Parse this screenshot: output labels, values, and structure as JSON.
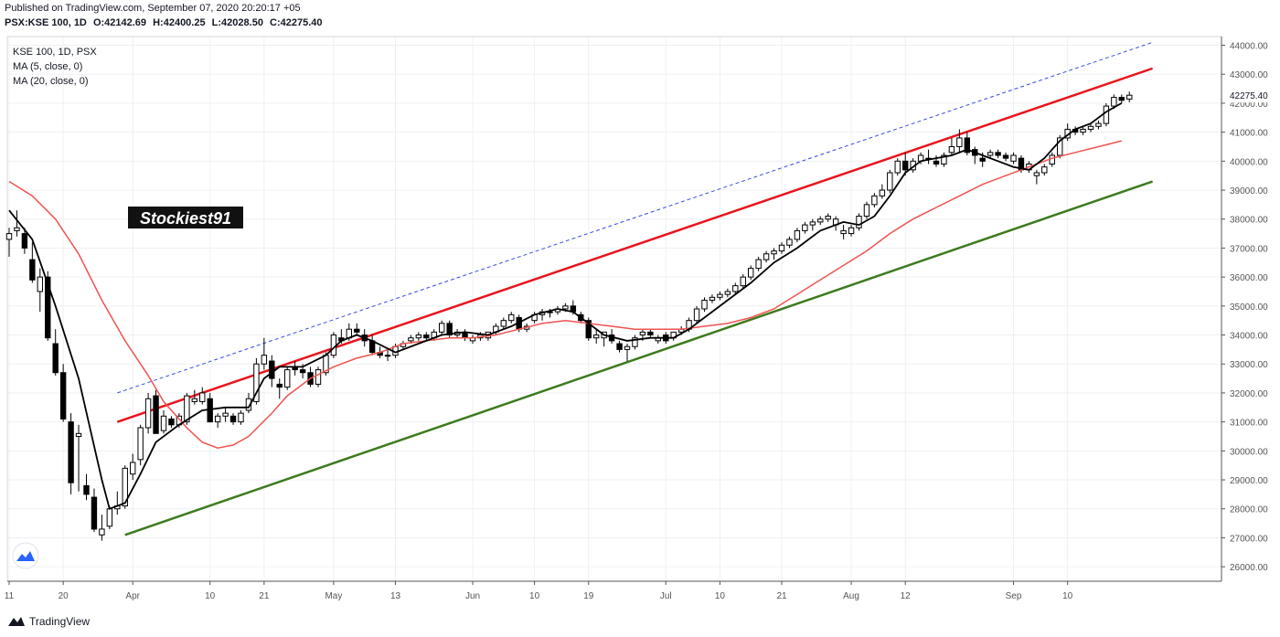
{
  "header": {
    "published": "Published on TradingView.com, September 07, 2020 20:20:17 +05",
    "symbol": "PSX:KSE 100, 1D",
    "ohlc": {
      "open": "O:42142.69",
      "high": "H:42400.25",
      "low": "L:42028.50",
      "close": "C:42275.40"
    }
  },
  "chart_legend": {
    "symbol_line": "KSE 100, 1D, PSX",
    "ma5": "MA (5, close, 0)",
    "ma20": "MA (20, close, 0)"
  },
  "watermark": "Stockiest91",
  "footer": {
    "brand": "TradingView"
  },
  "colors": {
    "ma5": "#000000",
    "ma20": "#ef5350",
    "upper_channel": "#e8141c",
    "lower_channel": "#3d7a1e",
    "dashed_channel": "#3b4be0",
    "grid": "#eef0f3",
    "axis": "#555555"
  },
  "chart_data": {
    "type": "candlestick",
    "y_axis": {
      "min": 25500,
      "max": 44300,
      "ticks": [
        "26000.00",
        "27000.00",
        "28000.00",
        "29000.00",
        "30000.00",
        "31000.00",
        "32000.00",
        "33000.00",
        "34000.00",
        "35000.00",
        "36000.00",
        "37000.00",
        "38000.00",
        "39000.00",
        "40000.00",
        "41000.00",
        "42000.00",
        "43000.00",
        "44000.00"
      ],
      "last_price_label": "42275.40"
    },
    "x_axis": {
      "labels": [
        {
          "i": 0,
          "text": "11"
        },
        {
          "i": 7,
          "text": "20"
        },
        {
          "i": 16,
          "text": "Apr"
        },
        {
          "i": 26,
          "text": "10"
        },
        {
          "i": 33,
          "text": "21"
        },
        {
          "i": 42,
          "text": "May"
        },
        {
          "i": 50,
          "text": "13"
        },
        {
          "i": 60,
          "text": "Jun"
        },
        {
          "i": 68,
          "text": "10"
        },
        {
          "i": 75,
          "text": "19"
        },
        {
          "i": 85,
          "text": "Jul"
        },
        {
          "i": 92,
          "text": "10"
        },
        {
          "i": 100,
          "text": "21"
        },
        {
          "i": 109,
          "text": "Aug"
        },
        {
          "i": 116,
          "text": "12"
        },
        {
          "i": 130,
          "text": "Sep"
        },
        {
          "i": 137,
          "text": "10"
        }
      ]
    },
    "candles": [
      [
        37300,
        37700,
        36700,
        37500
      ],
      [
        37600,
        38300,
        37400,
        37700
      ],
      [
        37500,
        37700,
        36800,
        37000
      ],
      [
        36600,
        37200,
        35800,
        35900
      ],
      [
        35500,
        36300,
        34800,
        36000
      ],
      [
        36000,
        36200,
        33800,
        33900
      ],
      [
        33700,
        34200,
        32600,
        32700
      ],
      [
        32700,
        33000,
        31000,
        31100
      ],
      [
        31000,
        31300,
        28500,
        28900
      ],
      [
        30500,
        30900,
        28600,
        30600
      ],
      [
        28800,
        29200,
        28300,
        28500
      ],
      [
        28400,
        28700,
        27200,
        27300
      ],
      [
        27100,
        27800,
        26900,
        27300
      ],
      [
        27400,
        28100,
        27300,
        28000
      ],
      [
        28000,
        28600,
        27800,
        28100
      ],
      [
        28100,
        29500,
        28000,
        29400
      ],
      [
        29200,
        29900,
        29000,
        29600
      ],
      [
        29700,
        30900,
        29500,
        30800
      ],
      [
        30800,
        32000,
        30600,
        31800
      ],
      [
        31900,
        32100,
        30600,
        30600
      ],
      [
        30700,
        31400,
        30600,
        31200
      ],
      [
        31100,
        31200,
        30800,
        30900
      ],
      [
        30900,
        31300,
        30800,
        31200
      ],
      [
        31000,
        32000,
        30900,
        31900
      ],
      [
        31700,
        32100,
        31600,
        31800
      ],
      [
        31700,
        32200,
        31600,
        32000
      ],
      [
        31800,
        32000,
        31000,
        31000
      ],
      [
        31000,
        31300,
        30800,
        31200
      ],
      [
        31200,
        31500,
        31000,
        31300
      ],
      [
        31200,
        31300,
        30900,
        31000
      ],
      [
        31000,
        31400,
        30900,
        31300
      ],
      [
        31400,
        32000,
        31300,
        31800
      ],
      [
        31700,
        33200,
        31600,
        33000
      ],
      [
        33000,
        33900,
        32800,
        33300
      ],
      [
        33100,
        33300,
        32200,
        32500
      ],
      [
        32300,
        32500,
        31800,
        32200
      ],
      [
        32200,
        32900,
        32100,
        32800
      ],
      [
        32900,
        33100,
        32600,
        32800
      ],
      [
        32800,
        33000,
        32500,
        32700
      ],
      [
        32700,
        32900,
        32200,
        32300
      ],
      [
        32300,
        32900,
        32200,
        32800
      ],
      [
        32700,
        33400,
        32600,
        33300
      ],
      [
        33300,
        34100,
        33200,
        34000
      ],
      [
        33900,
        34200,
        33700,
        33800
      ],
      [
        33900,
        34400,
        33800,
        34200
      ],
      [
        34200,
        34400,
        34000,
        34100
      ],
      [
        34000,
        34200,
        33600,
        33800
      ],
      [
        33800,
        34000,
        33300,
        33400
      ],
      [
        33400,
        33600,
        33200,
        33300
      ],
      [
        33300,
        33500,
        33100,
        33300
      ],
      [
        33300,
        33700,
        33200,
        33600
      ],
      [
        33600,
        33800,
        33500,
        33700
      ],
      [
        33800,
        34000,
        33700,
        33900
      ],
      [
        33900,
        34100,
        33800,
        34000
      ],
      [
        34000,
        34100,
        33800,
        33900
      ],
      [
        33900,
        34200,
        33800,
        34100
      ],
      [
        34100,
        34500,
        34000,
        34400
      ],
      [
        34400,
        34500,
        33900,
        34000
      ],
      [
        34000,
        34200,
        33900,
        34100
      ],
      [
        34100,
        34200,
        33800,
        33900
      ],
      [
        33800,
        34000,
        33700,
        33900
      ],
      [
        33900,
        34100,
        33800,
        34000
      ],
      [
        33900,
        34100,
        33800,
        34100
      ],
      [
        34100,
        34400,
        34000,
        34300
      ],
      [
        34300,
        34600,
        34200,
        34500
      ],
      [
        34500,
        34800,
        34400,
        34700
      ],
      [
        34600,
        34700,
        34100,
        34200
      ],
      [
        34200,
        34400,
        34100,
        34300
      ],
      [
        34500,
        34800,
        34400,
        34700
      ],
      [
        34700,
        34900,
        34500,
        34800
      ],
      [
        34800,
        34900,
        34600,
        34800
      ],
      [
        34800,
        35000,
        34700,
        34900
      ],
      [
        34900,
        35100,
        34800,
        35000
      ],
      [
        35000,
        35200,
        34700,
        34800
      ],
      [
        34700,
        34800,
        34400,
        34500
      ],
      [
        34500,
        34600,
        33800,
        33900
      ],
      [
        33900,
        34200,
        33700,
        34000
      ],
      [
        33900,
        34100,
        33600,
        34100
      ],
      [
        34000,
        34200,
        33700,
        33800
      ],
      [
        33700,
        33800,
        33400,
        33500
      ],
      [
        33500,
        33700,
        33100,
        33600
      ],
      [
        33600,
        34000,
        33500,
        33900
      ],
      [
        34000,
        34200,
        33800,
        34100
      ],
      [
        34100,
        34200,
        33900,
        34000
      ],
      [
        33800,
        34000,
        33700,
        33900
      ],
      [
        34000,
        34100,
        33700,
        33800
      ],
      [
        33900,
        34100,
        33800,
        34100
      ],
      [
        34100,
        34300,
        34000,
        34200
      ],
      [
        34200,
        34600,
        34100,
        34500
      ],
      [
        34500,
        35000,
        34400,
        34900
      ],
      [
        34900,
        35300,
        34800,
        35200
      ],
      [
        35200,
        35400,
        35100,
        35300
      ],
      [
        35300,
        35500,
        35200,
        35400
      ],
      [
        35400,
        35600,
        35300,
        35500
      ],
      [
        35500,
        35800,
        35400,
        35700
      ],
      [
        35700,
        36100,
        35600,
        36000
      ],
      [
        36000,
        36400,
        35900,
        36300
      ],
      [
        36300,
        36700,
        36200,
        36600
      ],
      [
        36600,
        36900,
        36500,
        36800
      ],
      [
        36800,
        37000,
        36600,
        36900
      ],
      [
        36900,
        37200,
        36800,
        37100
      ],
      [
        37100,
        37400,
        37000,
        37300
      ],
      [
        37300,
        37700,
        37200,
        37600
      ],
      [
        37600,
        37900,
        37500,
        37800
      ],
      [
        37800,
        38000,
        37600,
        37900
      ],
      [
        37900,
        38100,
        37800,
        38000
      ],
      [
        38000,
        38200,
        37900,
        38100
      ],
      [
        37800,
        38100,
        37600,
        38000
      ],
      [
        37500,
        37800,
        37300,
        37600
      ],
      [
        37500,
        37800,
        37400,
        37700
      ],
      [
        37700,
        38200,
        37600,
        38100
      ],
      [
        38100,
        38600,
        38000,
        38500
      ],
      [
        38500,
        38900,
        38400,
        38800
      ],
      [
        38800,
        39200,
        38700,
        39000
      ],
      [
        39000,
        39700,
        38900,
        39600
      ],
      [
        39600,
        40100,
        39500,
        40000
      ],
      [
        40000,
        40300,
        39500,
        39700
      ],
      [
        39700,
        40100,
        39600,
        40000
      ],
      [
        40000,
        40300,
        39900,
        40200
      ],
      [
        40100,
        40400,
        39900,
        40100
      ],
      [
        40000,
        40200,
        39800,
        39900
      ],
      [
        39900,
        40300,
        39800,
        40200
      ],
      [
        40300,
        40800,
        40200,
        40500
      ],
      [
        40500,
        41100,
        40300,
        40800
      ],
      [
        40800,
        41000,
        40200,
        40300
      ],
      [
        40400,
        40500,
        39900,
        40200
      ],
      [
        40100,
        40300,
        39800,
        40000
      ],
      [
        40200,
        40400,
        40100,
        40300
      ],
      [
        40300,
        40400,
        40100,
        40200
      ],
      [
        40200,
        40300,
        40000,
        40100
      ],
      [
        40000,
        40300,
        39900,
        40200
      ],
      [
        40100,
        40200,
        39600,
        39700
      ],
      [
        39700,
        40000,
        39600,
        39900
      ],
      [
        39500,
        39700,
        39200,
        39600
      ],
      [
        39600,
        39900,
        39500,
        39800
      ],
      [
        39900,
        40300,
        39800,
        40200
      ],
      [
        40200,
        40900,
        40100,
        40800
      ],
      [
        40800,
        41300,
        40700,
        41100
      ],
      [
        41100,
        41200,
        40900,
        41000
      ],
      [
        41000,
        41200,
        40900,
        41100
      ],
      [
        41100,
        41300,
        41000,
        41200
      ],
      [
        41200,
        41400,
        41100,
        41300
      ],
      [
        41300,
        42000,
        41200,
        41900
      ],
      [
        41900,
        42300,
        41800,
        42200
      ],
      [
        42200,
        42300,
        42000,
        42100
      ],
      [
        42142.69,
        42400.25,
        42028.5,
        42275.4
      ]
    ],
    "ma5": [
      [
        0,
        38300
      ],
      [
        3,
        37300
      ],
      [
        6,
        35000
      ],
      [
        9,
        32500
      ],
      [
        12,
        29000
      ],
      [
        13,
        28000
      ],
      [
        15,
        28200
      ],
      [
        17,
        29200
      ],
      [
        19,
        30300
      ],
      [
        22,
        30900
      ],
      [
        25,
        31400
      ],
      [
        28,
        31500
      ],
      [
        31,
        31500
      ],
      [
        33,
        32500
      ],
      [
        35,
        32900
      ],
      [
        38,
        32900
      ],
      [
        41,
        33300
      ],
      [
        43,
        33800
      ],
      [
        45,
        34000
      ],
      [
        47,
        33800
      ],
      [
        50,
        33400
      ],
      [
        53,
        33700
      ],
      [
        56,
        34000
      ],
      [
        59,
        34100
      ],
      [
        62,
        34000
      ],
      [
        65,
        34300
      ],
      [
        68,
        34700
      ],
      [
        71,
        34900
      ],
      [
        73,
        34800
      ],
      [
        75,
        34400
      ],
      [
        77,
        34000
      ],
      [
        80,
        33800
      ],
      [
        83,
        33900
      ],
      [
        86,
        33900
      ],
      [
        88,
        34200
      ],
      [
        90,
        34600
      ],
      [
        93,
        35200
      ],
      [
        96,
        35800
      ],
      [
        99,
        36500
      ],
      [
        102,
        37000
      ],
      [
        105,
        37600
      ],
      [
        108,
        37900
      ],
      [
        110,
        37800
      ],
      [
        112,
        38100
      ],
      [
        114,
        38800
      ],
      [
        116,
        39600
      ],
      [
        118,
        40000
      ],
      [
        120,
        40100
      ],
      [
        122,
        40200
      ],
      [
        124,
        40400
      ],
      [
        126,
        40200
      ],
      [
        128,
        40000
      ],
      [
        130,
        39800
      ],
      [
        132,
        39700
      ],
      [
        134,
        40100
      ],
      [
        136,
        40700
      ],
      [
        138,
        41100
      ],
      [
        140,
        41300
      ],
      [
        142,
        41700
      ],
      [
        144,
        42000
      ]
    ],
    "ma20": [
      [
        0,
        39300
      ],
      [
        3,
        38800
      ],
      [
        6,
        38000
      ],
      [
        9,
        36800
      ],
      [
        12,
        35200
      ],
      [
        15,
        33800
      ],
      [
        18,
        32600
      ],
      [
        20,
        31700
      ],
      [
        23,
        30800
      ],
      [
        25,
        30300
      ],
      [
        27,
        30100
      ],
      [
        29,
        30200
      ],
      [
        31,
        30500
      ],
      [
        34,
        31300
      ],
      [
        36,
        31900
      ],
      [
        39,
        32500
      ],
      [
        42,
        32900
      ],
      [
        45,
        33200
      ],
      [
        48,
        33400
      ],
      [
        51,
        33700
      ],
      [
        54,
        33800
      ],
      [
        57,
        33900
      ],
      [
        60,
        33900
      ],
      [
        63,
        34000
      ],
      [
        66,
        34200
      ],
      [
        69,
        34400
      ],
      [
        72,
        34500
      ],
      [
        75,
        34400
      ],
      [
        78,
        34300
      ],
      [
        81,
        34200
      ],
      [
        84,
        34200
      ],
      [
        87,
        34200
      ],
      [
        90,
        34300
      ],
      [
        93,
        34400
      ],
      [
        96,
        34600
      ],
      [
        99,
        34900
      ],
      [
        102,
        35400
      ],
      [
        105,
        35900
      ],
      [
        108,
        36400
      ],
      [
        111,
        36900
      ],
      [
        114,
        37500
      ],
      [
        117,
        38000
      ],
      [
        120,
        38400
      ],
      [
        123,
        38800
      ],
      [
        126,
        39200
      ],
      [
        129,
        39500
      ],
      [
        132,
        39800
      ],
      [
        135,
        40100
      ],
      [
        138,
        40300
      ],
      [
        141,
        40500
      ],
      [
        144,
        40700
      ]
    ],
    "trendlines": [
      {
        "name": "upper",
        "from": [
          14,
          31000
        ],
        "to": [
          148,
          43200
        ]
      },
      {
        "name": "lower",
        "from": [
          15,
          27100
        ],
        "to": [
          148,
          39300
        ]
      },
      {
        "name": "dashed",
        "from": [
          14,
          32000
        ],
        "to": [
          148,
          44100
        ]
      }
    ]
  }
}
